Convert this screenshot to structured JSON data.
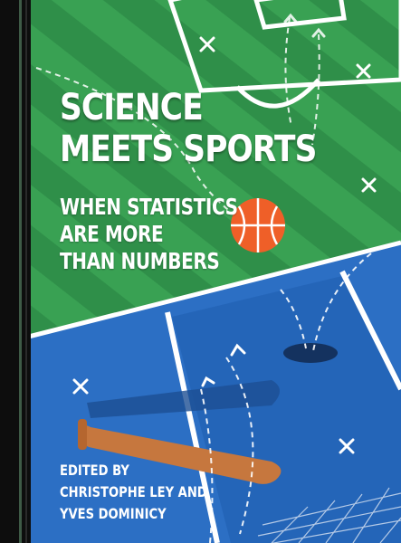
{
  "title": {
    "line1": "SCIENCE",
    "line2": "MEETS SPORTS"
  },
  "subtitle": {
    "line1": "WHEN STATISTICS",
    "line2": "ARE MORE",
    "line3": "THAN NUMBERS"
  },
  "editors": {
    "label": "EDITED BY",
    "line1": "CHRISTOPHE LEY AND",
    "line2": "YVES DOMINICY"
  },
  "colors": {
    "field_green": "#2e8b46",
    "stripe_green": "#349a4e",
    "court_blue": "#2b6fc2",
    "court_blue_dark": "#1f5aa8",
    "ball_orange": "#f0612a",
    "bat_brown": "#c8783e",
    "spine": "#0e0e0e"
  }
}
